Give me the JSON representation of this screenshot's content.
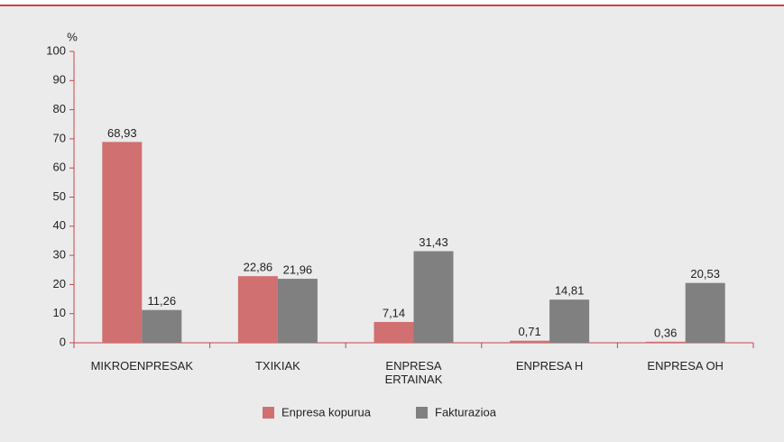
{
  "chart_data": {
    "type": "bar",
    "y_unit": "%",
    "categories": [
      "MIKROENPRESAK",
      "TXIKIAK",
      "ENPRESA\nERTAINAK",
      "ENPRESA H",
      "ENPRESA OH"
    ],
    "series": [
      {
        "name": "Enpresa kopurua",
        "color": "#d07070",
        "values": [
          68.93,
          22.86,
          7.14,
          0.71,
          0.36
        ],
        "value_labels": [
          "68,93",
          "22,86",
          "7,14",
          "0,71",
          "0,36"
        ]
      },
      {
        "name": "Fakturazioa",
        "color": "#808080",
        "values": [
          11.26,
          21.96,
          31.43,
          14.81,
          20.53
        ],
        "value_labels": [
          "11,26",
          "21,96",
          "31,43",
          "14,81",
          "20,53"
        ]
      }
    ],
    "ylim": [
      0,
      100
    ],
    "yticks": [
      0,
      10,
      20,
      30,
      40,
      50,
      60,
      70,
      80,
      90,
      100
    ],
    "axis_color": "#c8434f"
  }
}
